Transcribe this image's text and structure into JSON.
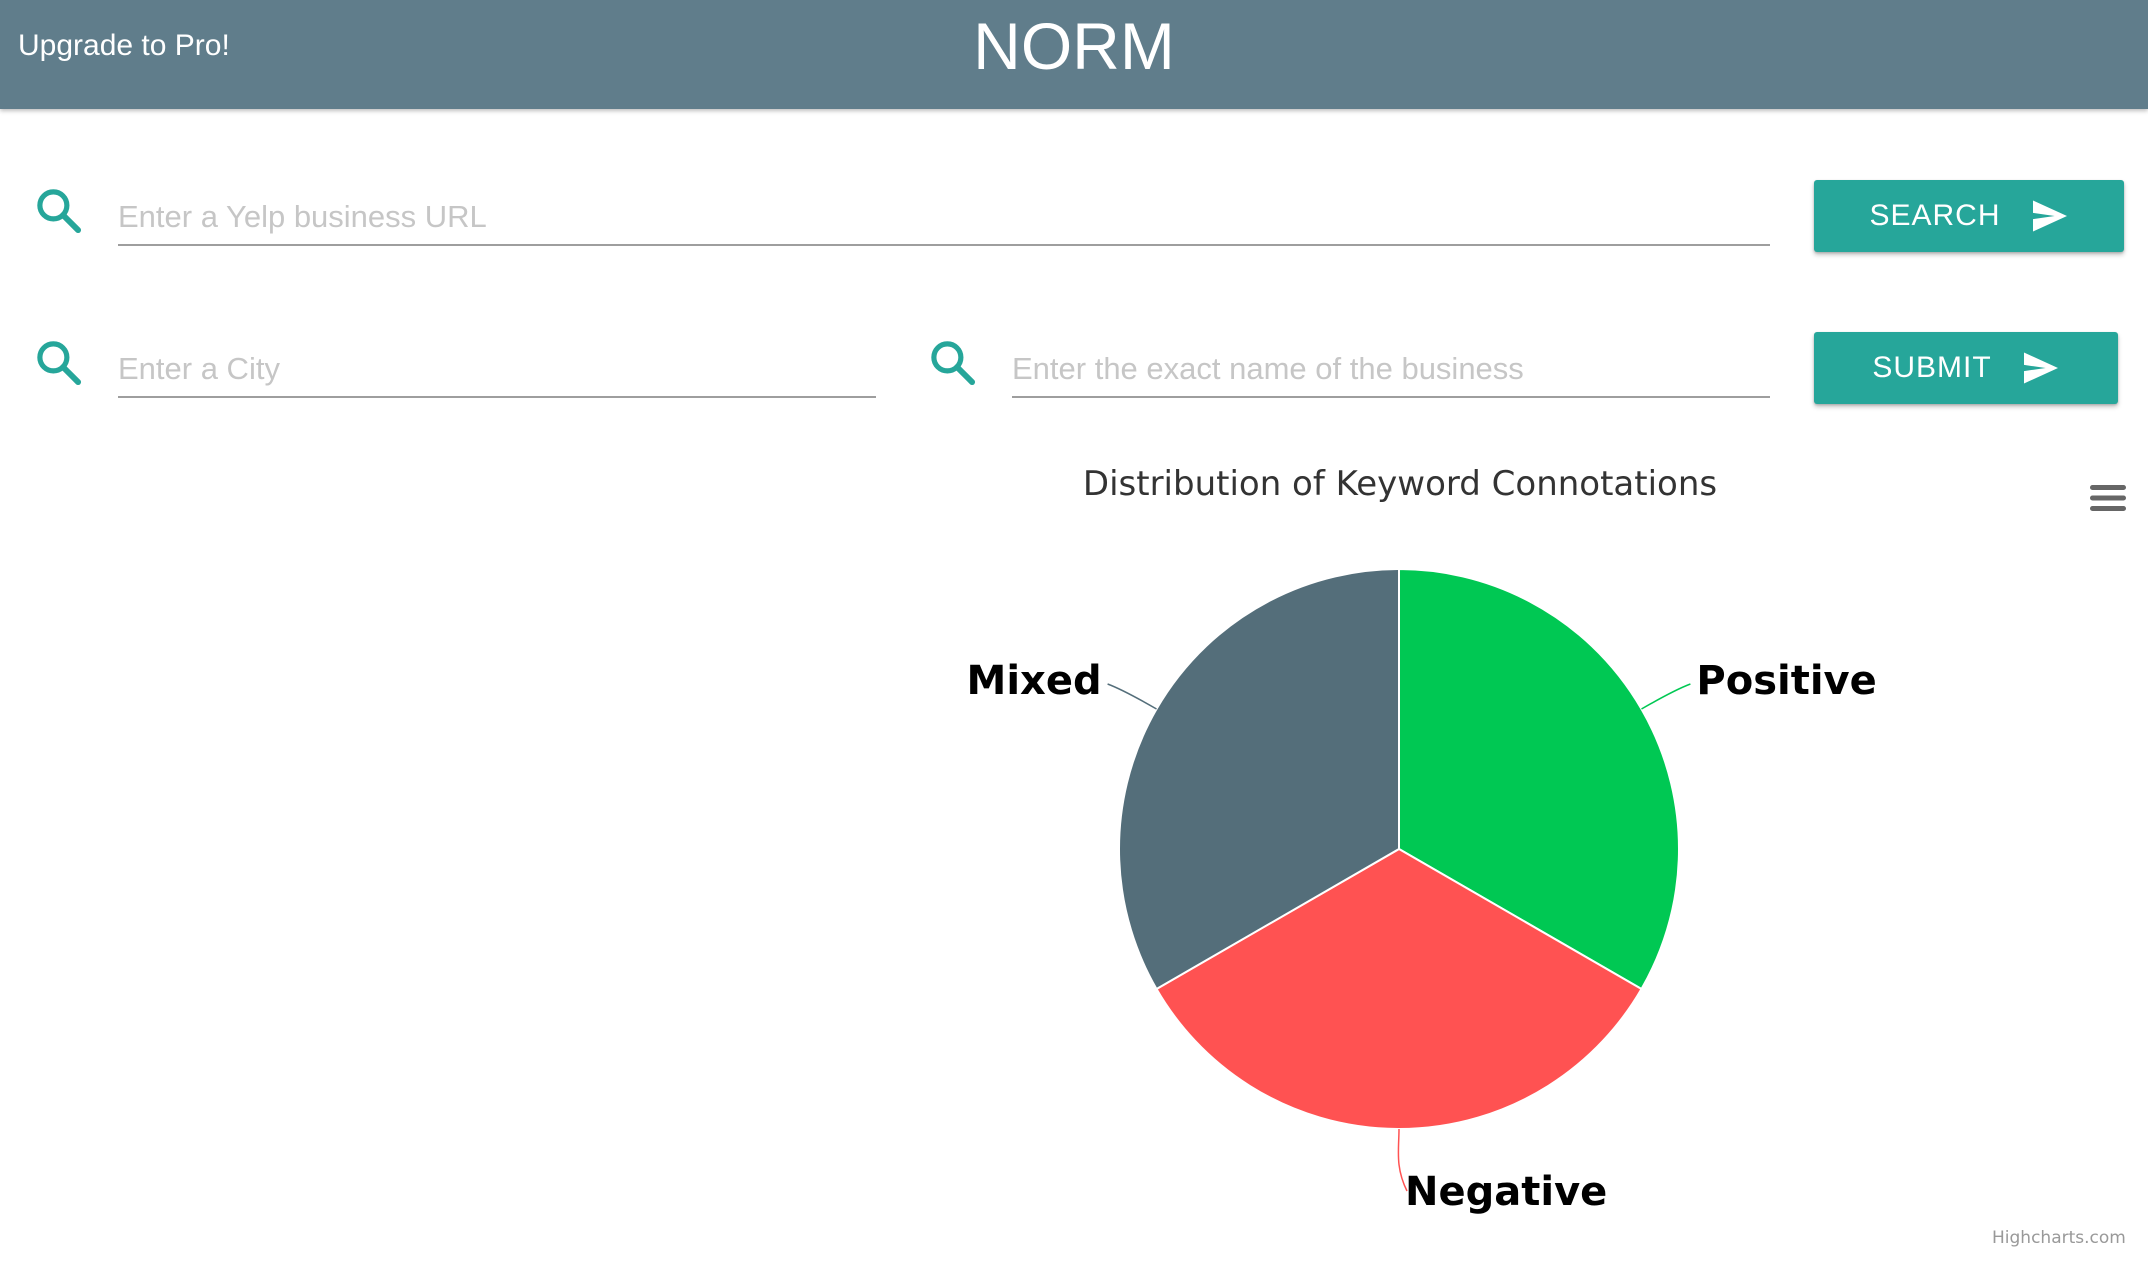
{
  "header": {
    "upgrade_label": "Upgrade to Pro!",
    "title": "NORM"
  },
  "form": {
    "url_placeholder": "Enter a Yelp business URL",
    "city_placeholder": "Enter a City",
    "business_placeholder": "Enter the exact name of the business",
    "search_label": "SEARCH",
    "submit_label": "SUBMIT"
  },
  "icons": {
    "search": "search-icon",
    "send": "send-icon",
    "menu": "hamburger-menu-icon"
  },
  "colors": {
    "header": "#607d8b",
    "accent": "#26a69a"
  },
  "chart_data": {
    "type": "pie",
    "title": "Distribution of Keyword Connotations",
    "slices": [
      {
        "label": "Positive",
        "value": 1,
        "color": "#00c853"
      },
      {
        "label": "Negative",
        "value": 1,
        "color": "#ff5252"
      },
      {
        "label": "Mixed",
        "value": 1,
        "color": "#546e7a"
      }
    ],
    "credits": "Highcharts.com"
  }
}
